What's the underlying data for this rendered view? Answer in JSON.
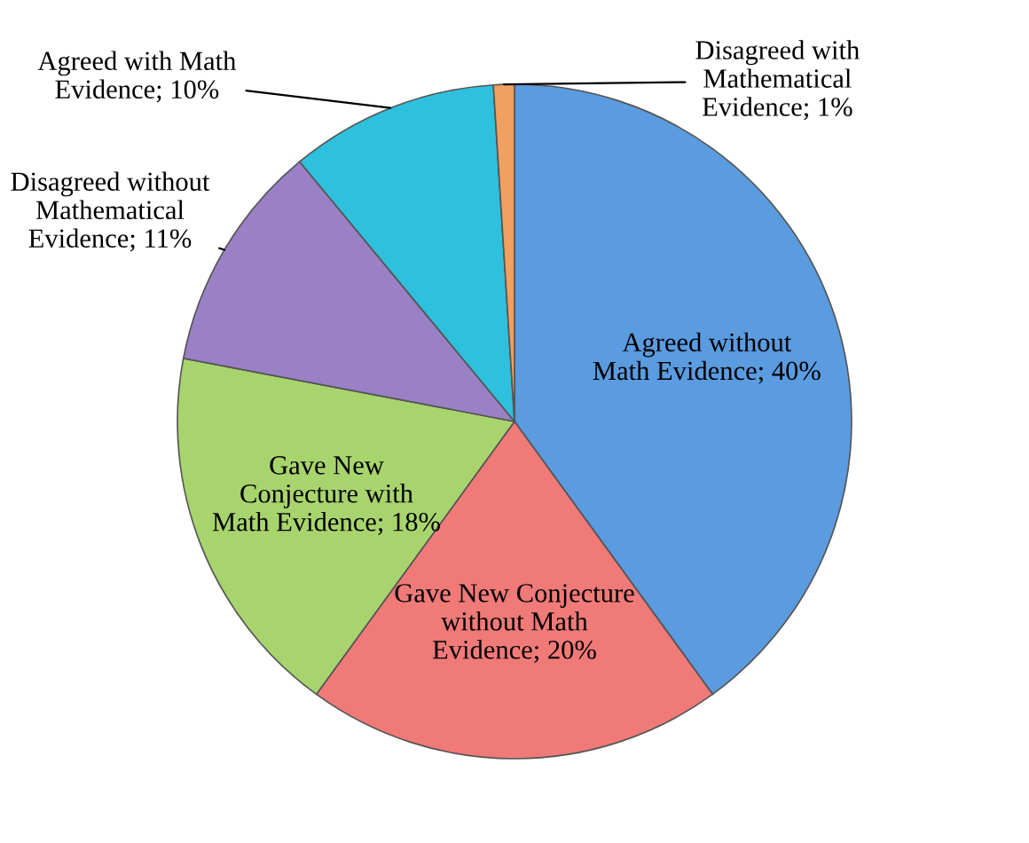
{
  "chart_data": {
    "type": "pie",
    "categories": [
      "Agreed without Math Evidence",
      "Gave New Conjecture without Math Evidence",
      "Gave New Conjecture with Math Evidence",
      "Disagreed without Mathematical Evidence",
      "Agreed with Math Evidence",
      "Disagreed with Mathematical Evidence"
    ],
    "values": [
      40,
      20,
      18,
      11,
      10,
      1
    ],
    "value_labels": [
      "40%",
      "20%",
      "18%",
      "11%",
      "10%",
      "1%"
    ],
    "colors": [
      "#5b9be0",
      "#f07a78",
      "#a8d46e",
      "#9a80c4",
      "#2ec0dc",
      "#f0a060"
    ],
    "legend": false
  }
}
